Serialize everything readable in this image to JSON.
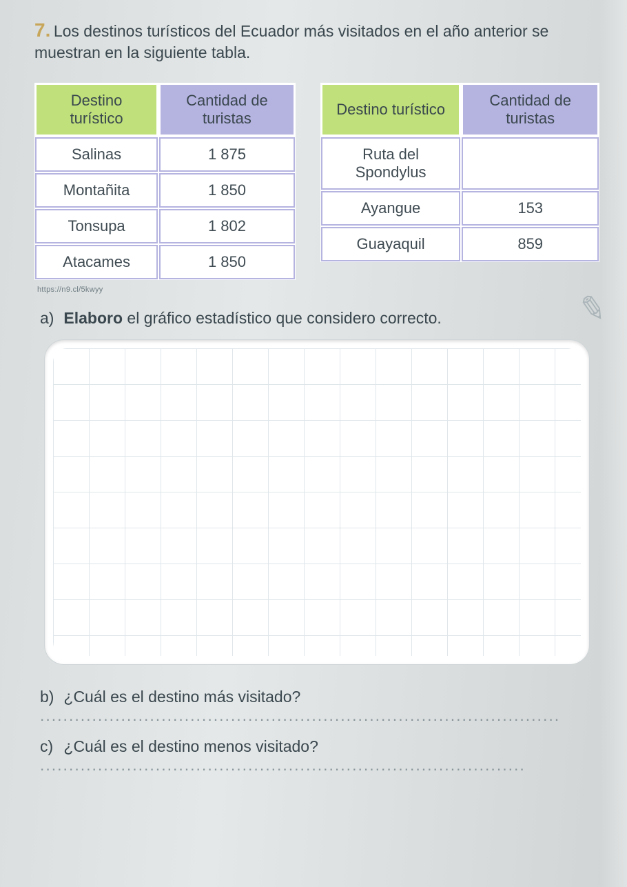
{
  "question": {
    "number": "7.",
    "text": "Los destinos turísticos del Ecuador más visitados en el año anterior se muestran en la siguiente tabla."
  },
  "table_left": {
    "type": "table",
    "header_colors": [
      "#bfe07a",
      "#b5b3e0"
    ],
    "border_color": "#b5b3e0",
    "columns": [
      "Destino turístico",
      "Cantidad de turistas"
    ],
    "rows": [
      [
        "Salinas",
        "1 875"
      ],
      [
        "Montañita",
        "1 850"
      ],
      [
        "Tonsupa",
        "1 802"
      ],
      [
        "Atacames",
        "1 850"
      ]
    ]
  },
  "table_right": {
    "type": "table",
    "header_colors": [
      "#bfe07a",
      "#b5b3e0"
    ],
    "border_color": "#b5b3e0",
    "columns": [
      "Destino turístico",
      "Cantidad de turistas"
    ],
    "rows": [
      [
        "Ruta del Spondylus",
        ""
      ],
      [
        "Ayangue",
        "153"
      ],
      [
        "Guayaquil",
        "859"
      ]
    ]
  },
  "source": "https://n9.cl/5kwyy",
  "items": {
    "a": {
      "label": "a)",
      "bold": "Elaboro",
      "rest": " el gráfico estadístico que considero correcto."
    },
    "b": {
      "label": "b)",
      "text": "¿Cuál es el destino más visitado?"
    },
    "c": {
      "label": "c)",
      "text": "¿Cuál es el destino menos visitado?"
    }
  },
  "answer_box": {
    "background_color": "#ffffff",
    "grid_color": "#dfe6ea",
    "border_radius": 28
  }
}
